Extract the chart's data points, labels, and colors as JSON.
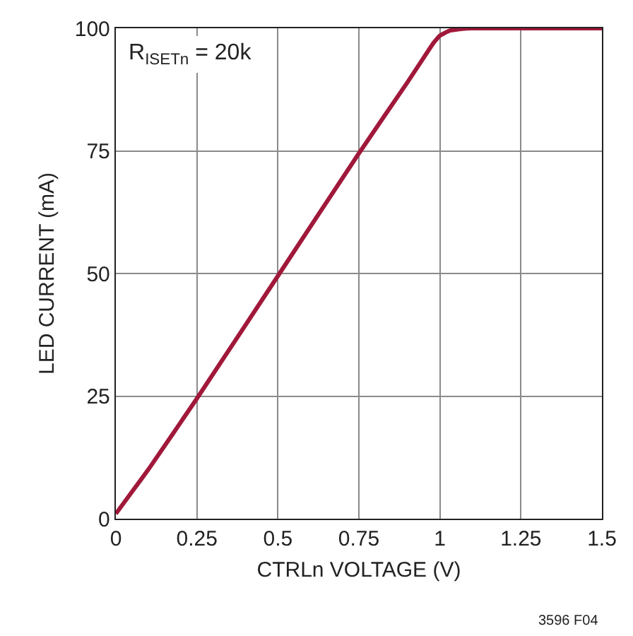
{
  "chart_data": {
    "type": "line",
    "xlabel": "CTRLn VOLTAGE (V)",
    "ylabel": "LED CURRENT (mA)",
    "annotations": [
      "R$_{ISETn}$ = 20k",
      "3596 F04"
    ],
    "x": [
      0,
      0.05,
      0.1,
      0.25,
      0.5,
      0.75,
      0.9,
      0.95,
      0.98,
      1.0,
      1.03,
      1.07,
      1.1,
      1.2,
      1.5
    ],
    "series": [
      {
        "color": "#a0183a",
        "values": [
          1,
          5.5,
          10,
          24.5,
          49.5,
          74.5,
          89,
          94,
          97,
          98.5,
          99.5,
          99.9,
          100,
          100,
          100
        ]
      }
    ],
    "xlim": [
      0,
      1.5
    ],
    "xticks": [
      0,
      0.25,
      0.5,
      0.75,
      1,
      1.25,
      1.5
    ],
    "ylim": [
      0,
      100
    ],
    "yticks": [
      0,
      25,
      50,
      75,
      100
    ],
    "grid": true,
    "marker": "none",
    "line_style": "solid"
  }
}
